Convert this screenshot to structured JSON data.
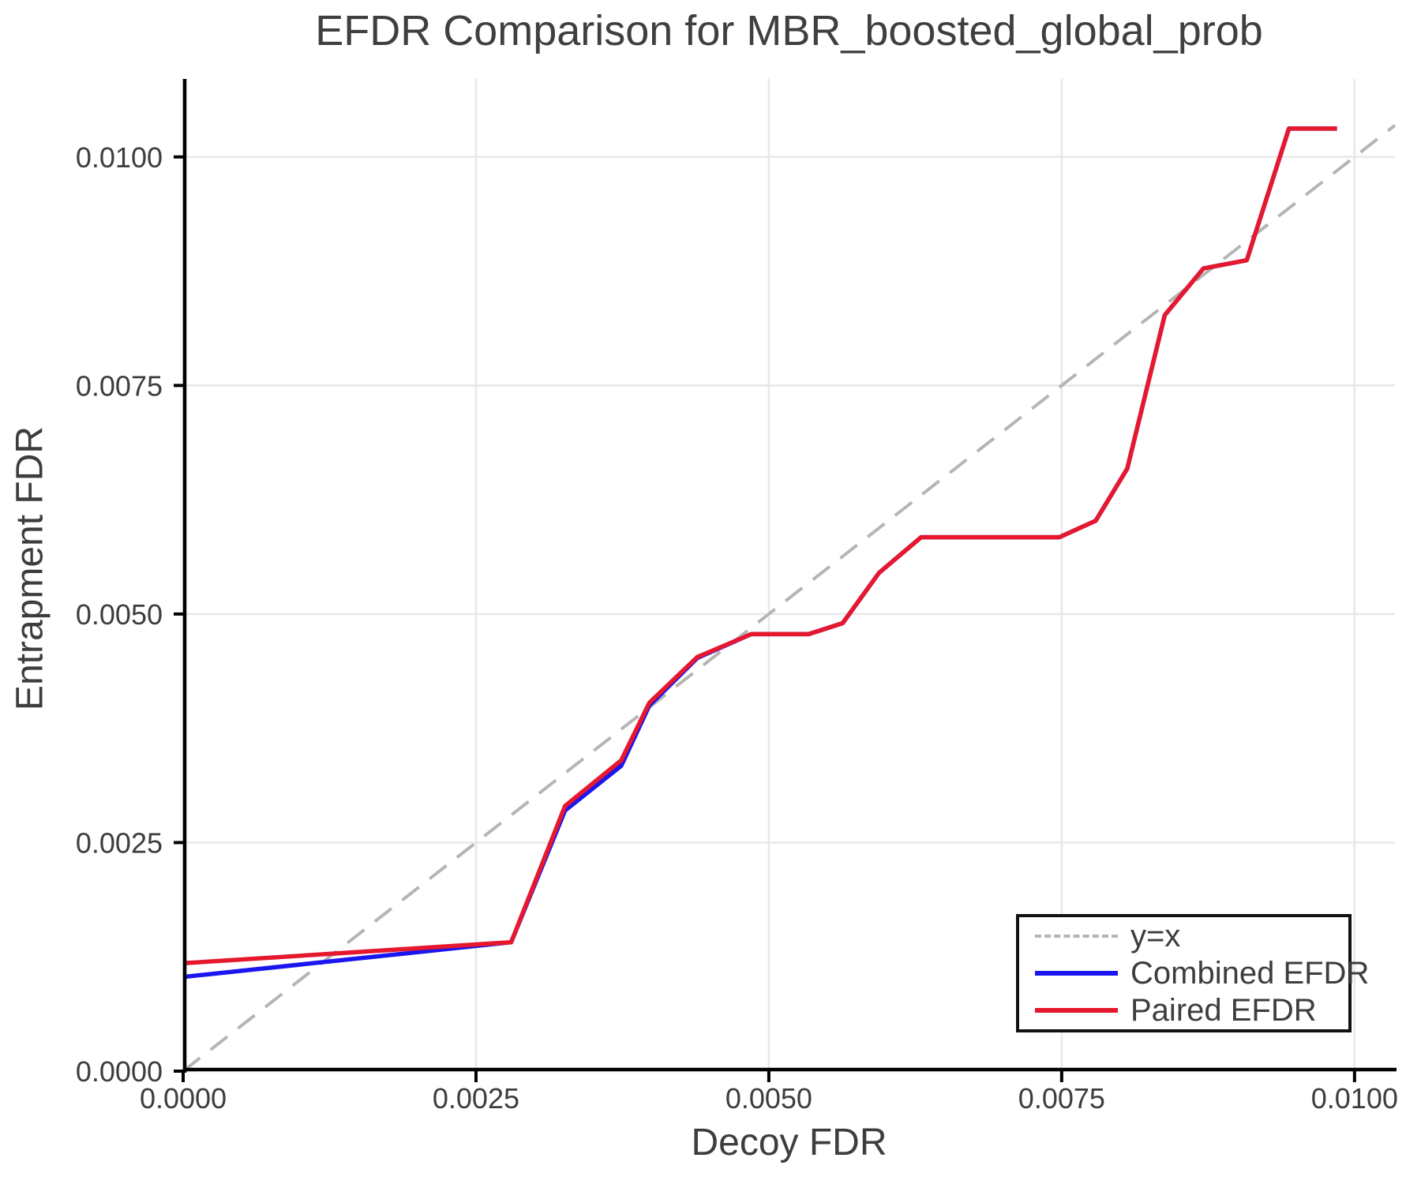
{
  "chart_data": {
    "type": "line",
    "title": "EFDR Comparison for MBR_boosted_global_prob",
    "xlabel": "Decoy FDR",
    "ylabel": "Entrapment FDR",
    "xlim": [
      0,
      0.010345
    ],
    "ylim": [
      0,
      0.010853
    ],
    "grid": true,
    "legend_position": "lower right",
    "xticks": {
      "values": [
        0.0,
        0.0025,
        0.005,
        0.0075,
        0.01
      ],
      "labels": [
        "0.0000",
        "0.0025",
        "0.0050",
        "0.0075",
        "0.0100"
      ]
    },
    "yticks": {
      "values": [
        0.0,
        0.0025,
        0.005,
        0.0075,
        0.01
      ],
      "labels": [
        "0.0000",
        "0.0025",
        "0.0050",
        "0.0075",
        "0.0100"
      ]
    },
    "series": [
      {
        "name": "y=x",
        "style": "dashed",
        "color": "#b5b5b5",
        "width": 4,
        "x": [
          0,
          0.010345
        ],
        "y": [
          0,
          0.010345
        ]
      },
      {
        "name": "Combined EFDR",
        "style": "solid",
        "color": "#1a16ef",
        "width": 5.5,
        "x": [
          0.0,
          0.0028,
          0.00326,
          0.00374,
          0.00398,
          0.00439,
          0.00485,
          0.00534,
          0.00563,
          0.00594,
          0.0063,
          0.00748,
          0.00779,
          0.00806,
          0.00838,
          0.00871,
          0.00908,
          0.00944,
          0.00985
        ],
        "y": [
          0.00103,
          0.00141,
          0.00285,
          0.00334,
          0.004,
          0.00452,
          0.00478,
          0.00478,
          0.0049,
          0.00545,
          0.00584,
          0.00584,
          0.00602,
          0.00659,
          0.00827,
          0.00878,
          0.00887,
          0.01031,
          0.01031
        ]
      },
      {
        "name": "Paired EFDR",
        "style": "solid",
        "color": "#e6182e",
        "width": 5.5,
        "x": [
          0.0,
          0.0028,
          0.00326,
          0.00374,
          0.00398,
          0.00439,
          0.00485,
          0.00534,
          0.00563,
          0.00594,
          0.0063,
          0.00748,
          0.00779,
          0.00806,
          0.00838,
          0.00871,
          0.00908,
          0.00944,
          0.00985
        ],
        "y": [
          0.00118,
          0.00141,
          0.0029,
          0.0034,
          0.00403,
          0.00453,
          0.00478,
          0.00478,
          0.0049,
          0.00545,
          0.00584,
          0.00584,
          0.00602,
          0.00659,
          0.00827,
          0.00878,
          0.00887,
          0.01031,
          0.01031
        ]
      }
    ],
    "style": {
      "grid_color": "#e8e8e8",
      "spine_color": "#000000",
      "tick_color": "#000000",
      "tick_label_color": "#3d3d3d",
      "background": "#ffffff",
      "dash_pattern": "27 17"
    }
  }
}
